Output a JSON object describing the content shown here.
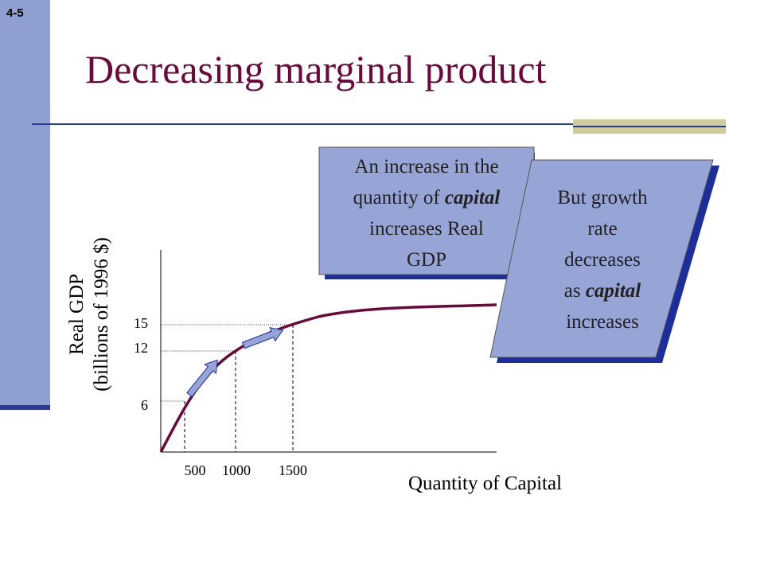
{
  "slide_number": "4-5",
  "title": "Decreasing marginal product",
  "diagram": {
    "y_axis_label_line1": "Real GDP",
    "y_axis_label_line2": "(billions of 1996 $)",
    "x_axis_label": "Quantity of Capital",
    "x_ticks": [
      "500",
      "1000",
      "1500"
    ],
    "y_ticks": [
      "15",
      "12",
      "6"
    ]
  },
  "callouts": {
    "first": {
      "line1": "An increase in the",
      "line2_prefix": "quantity of ",
      "line2_emph": "capital",
      "line3": "increases Real",
      "line4": "GDP"
    },
    "second": {
      "line1": "But growth",
      "line2": "rate",
      "line3": "decreases",
      "line4_prefix": "as ",
      "line4_emph": "capital",
      "line5": "increases"
    }
  },
  "colors": {
    "title": "#6b0a3a",
    "sidebar": "#8f9fcf",
    "callout_fill": "#97a4d6",
    "callout_shadow": "#1c2e9e",
    "curve": "#6b0a3a",
    "arrow_fill": "#97a4d6",
    "accent_bar": "#cfcc99"
  }
}
